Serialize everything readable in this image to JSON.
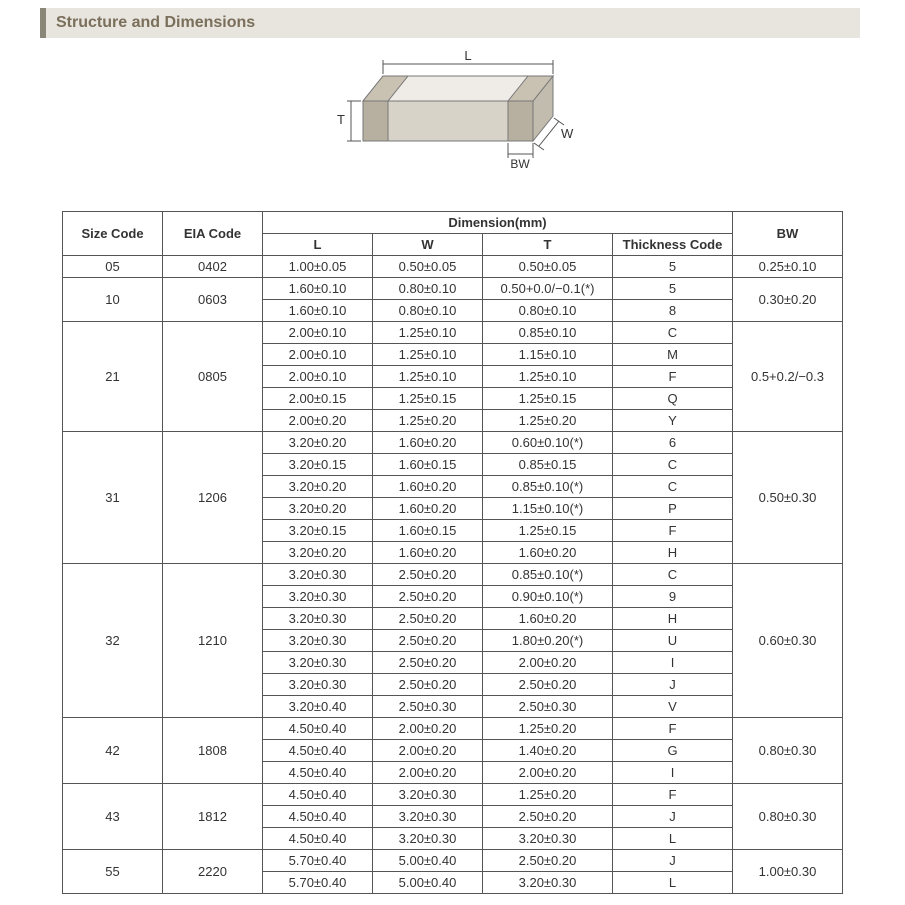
{
  "header": {
    "title": "Structure and Dimensions"
  },
  "diagram": {
    "type": "isometric-box",
    "labels": {
      "L": "L",
      "W": "W",
      "T": "T",
      "BW": "BW"
    },
    "stroke": "#777777",
    "fill_top": "#efece7",
    "fill_front": "#d8d3c9",
    "fill_side": "#c2bcae",
    "band_fill": "#b7b0a0"
  },
  "table": {
    "header_top": {
      "size": "Size Code",
      "eia": "EIA Code",
      "dim_group": "Dimension(mm)",
      "bw": "BW"
    },
    "header_sub": {
      "L": "L",
      "W": "W",
      "T": "T",
      "thk": "Thickness  Code"
    },
    "groups": [
      {
        "size": "05",
        "eia": "0402",
        "bw": "0.25±0.10",
        "rows": [
          {
            "L": "1.00±0.05",
            "W": "0.50±0.05",
            "T": "0.50±0.05",
            "thk": "5"
          }
        ]
      },
      {
        "size": "10",
        "eia": "0603",
        "bw": "0.30±0.20",
        "rows": [
          {
            "L": "1.60±0.10",
            "W": "0.80±0.10",
            "T": "0.50+0.0/−0.1(*)",
            "thk": "5"
          },
          {
            "L": "1.60±0.10",
            "W": "0.80±0.10",
            "T": "0.80±0.10",
            "thk": "8"
          }
        ]
      },
      {
        "size": "21",
        "eia": "0805",
        "bw": "0.5+0.2/−0.3",
        "rows": [
          {
            "L": "2.00±0.10",
            "W": "1.25±0.10",
            "T": "0.85±0.10",
            "thk": "C"
          },
          {
            "L": "2.00±0.10",
            "W": "1.25±0.10",
            "T": "1.15±0.10",
            "thk": "M"
          },
          {
            "L": "2.00±0.10",
            "W": "1.25±0.10",
            "T": "1.25±0.10",
            "thk": "F"
          },
          {
            "L": "2.00±0.15",
            "W": "1.25±0.15",
            "T": "1.25±0.15",
            "thk": "Q"
          },
          {
            "L": "2.00±0.20",
            "W": "1.25±0.20",
            "T": "1.25±0.20",
            "thk": "Y"
          }
        ]
      },
      {
        "size": "31",
        "eia": "1206",
        "bw": "0.50±0.30",
        "rows": [
          {
            "L": "3.20±0.20",
            "W": "1.60±0.20",
            "T": "0.60±0.10(*)",
            "thk": "6"
          },
          {
            "L": "3.20±0.15",
            "W": "1.60±0.15",
            "T": "0.85±0.15",
            "thk": "C"
          },
          {
            "L": "3.20±0.20",
            "W": "1.60±0.20",
            "T": "0.85±0.10(*)",
            "thk": "C"
          },
          {
            "L": "3.20±0.20",
            "W": "1.60±0.20",
            "T": "1.15±0.10(*)",
            "thk": "P"
          },
          {
            "L": "3.20±0.15",
            "W": "1.60±0.15",
            "T": "1.25±0.15",
            "thk": "F"
          },
          {
            "L": "3.20±0.20",
            "W": "1.60±0.20",
            "T": "1.60±0.20",
            "thk": "H"
          }
        ]
      },
      {
        "size": "32",
        "eia": "1210",
        "bw": "0.60±0.30",
        "rows": [
          {
            "L": "3.20±0.30",
            "W": "2.50±0.20",
            "T": "0.85±0.10(*)",
            "thk": "C"
          },
          {
            "L": "3.20±0.30",
            "W": "2.50±0.20",
            "T": "0.90±0.10(*)",
            "thk": "9"
          },
          {
            "L": "3.20±0.30",
            "W": "2.50±0.20",
            "T": "1.60±0.20",
            "thk": "H"
          },
          {
            "L": "3.20±0.30",
            "W": "2.50±0.20",
            "T": "1.80±0.20(*)",
            "thk": "U"
          },
          {
            "L": "3.20±0.30",
            "W": "2.50±0.20",
            "T": "2.00±0.20",
            "thk": "I"
          },
          {
            "L": "3.20±0.30",
            "W": "2.50±0.20",
            "T": "2.50±0.20",
            "thk": "J"
          },
          {
            "L": "3.20±0.40",
            "W": "2.50±0.30",
            "T": "2.50±0.30",
            "thk": "V"
          }
        ]
      },
      {
        "size": "42",
        "eia": "1808",
        "bw": "0.80±0.30",
        "rows": [
          {
            "L": "4.50±0.40",
            "W": "2.00±0.20",
            "T": "1.25±0.20",
            "thk": "F"
          },
          {
            "L": "4.50±0.40",
            "W": "2.00±0.20",
            "T": "1.40±0.20",
            "thk": "G"
          },
          {
            "L": "4.50±0.40",
            "W": "2.00±0.20",
            "T": "2.00±0.20",
            "thk": "I"
          }
        ]
      },
      {
        "size": "43",
        "eia": "1812",
        "bw": "0.80±0.30",
        "rows": [
          {
            "L": "4.50±0.40",
            "W": "3.20±0.30",
            "T": "1.25±0.20",
            "thk": "F"
          },
          {
            "L": "4.50±0.40",
            "W": "3.20±0.30",
            "T": "2.50±0.20",
            "thk": "J"
          },
          {
            "L": "4.50±0.40",
            "W": "3.20±0.30",
            "T": "3.20±0.30",
            "thk": "L"
          }
        ]
      },
      {
        "size": "55",
        "eia": "2220",
        "bw": "1.00±0.30",
        "rows": [
          {
            "L": "5.70±0.40",
            "W": "5.00±0.40",
            "T": "2.50±0.20",
            "thk": "J"
          },
          {
            "L": "5.70±0.40",
            "W": "5.00±0.40",
            "T": "3.20±0.30",
            "thk": "L"
          }
        ]
      }
    ]
  }
}
